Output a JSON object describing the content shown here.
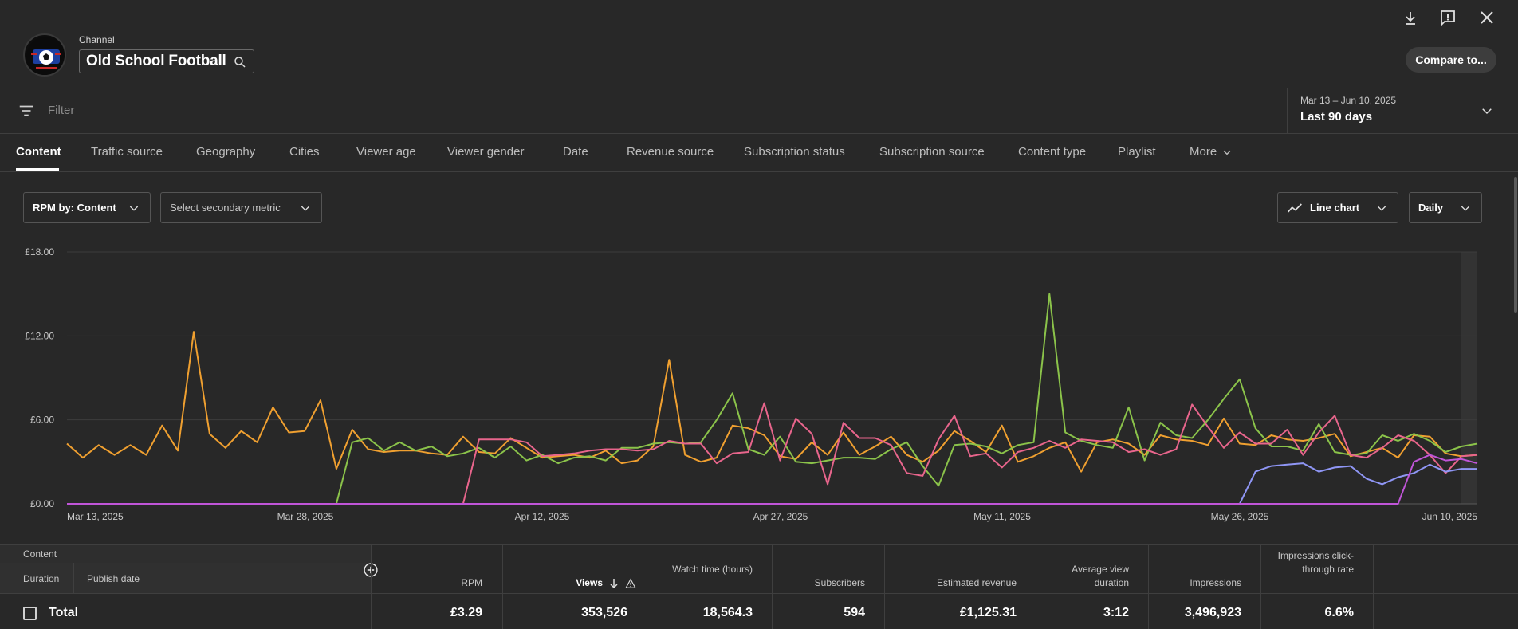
{
  "header": {
    "channel_label": "Channel",
    "channel_name": "Old School Football",
    "compare_label": "Compare to..."
  },
  "filter": {
    "placeholder": "Filter",
    "date_range": "Mar 13 – Jun 10, 2025",
    "date_label": "Last 90 days"
  },
  "tabs": [
    {
      "label": "Content",
      "active": true
    },
    {
      "label": "Traffic source"
    },
    {
      "label": "Geography"
    },
    {
      "label": "Cities"
    },
    {
      "label": "Viewer age"
    },
    {
      "label": "Viewer gender"
    },
    {
      "label": "Date"
    },
    {
      "label": "Revenue source"
    },
    {
      "label": "Subscription status"
    },
    {
      "label": "Subscription source"
    },
    {
      "label": "Content type"
    },
    {
      "label": "Playlist"
    },
    {
      "label": "More"
    }
  ],
  "controls": {
    "metric": "RPM by: Content",
    "secondary": "Select secondary metric",
    "chart_type": "Line chart",
    "granularity": "Daily"
  },
  "chart_data": {
    "type": "line",
    "x_start": "2025-03-13",
    "x_ticks": [
      "Mar 13, 2025",
      "Mar 28, 2025",
      "Apr 12, 2025",
      "Apr 27, 2025",
      "May 11, 2025",
      "May 26, 2025",
      "Jun 10, 2025"
    ],
    "y_ticks": [
      "£0.00",
      "£6.00",
      "£12.00",
      "£18.00"
    ],
    "ylim": [
      0,
      18
    ],
    "grid": true,
    "series": [
      {
        "color": "#f0a030",
        "values": [
          4.3,
          3.3,
          4.2,
          3.5,
          4.2,
          3.5,
          5.6,
          3.8,
          12.3,
          5.0,
          4.0,
          5.2,
          4.4,
          6.9,
          5.1,
          5.2,
          7.4,
          2.5,
          5.3,
          3.9,
          3.7,
          3.8,
          3.8,
          3.6,
          3.5,
          4.8,
          3.7,
          3.6,
          4.7,
          4.0,
          3.3,
          3.4,
          3.5,
          3.3,
          3.8,
          2.9,
          3.1,
          4.1,
          10.3,
          3.5,
          3.0,
          3.3,
          5.6,
          5.4,
          4.9,
          3.4,
          3.2,
          4.4,
          3.5,
          5.1,
          3.5,
          4.1,
          4.8,
          3.5,
          3.0,
          3.8,
          5.2,
          4.5,
          3.7,
          5.6,
          3.0,
          3.4,
          4.0,
          4.4,
          2.3,
          4.4,
          4.6,
          4.3,
          3.5,
          4.9,
          4.6,
          4.5,
          4.2,
          6.1,
          4.3,
          4.2,
          4.9,
          4.6,
          4.5,
          4.7,
          5.0,
          3.4,
          3.7,
          4.0,
          3.3,
          4.9,
          4.8,
          3.6,
          3.4,
          3.5
        ]
      },
      {
        "color": "#8bc34a",
        "values": [
          0,
          0,
          0,
          0,
          0,
          0,
          0,
          0,
          0,
          0,
          0,
          0,
          0,
          0,
          0,
          0,
          0,
          0,
          4.4,
          4.7,
          3.8,
          4.4,
          3.8,
          4.1,
          3.4,
          3.6,
          4.0,
          3.3,
          4.1,
          3.1,
          3.5,
          2.9,
          3.3,
          3.4,
          3.1,
          4.0,
          4.0,
          4.3,
          4.4,
          4.3,
          4.4,
          6.0,
          7.9,
          3.9,
          3.5,
          4.8,
          3.0,
          2.9,
          3.1,
          3.3,
          3.3,
          3.2,
          3.9,
          4.4,
          2.7,
          1.3,
          4.2,
          4.3,
          4.1,
          3.6,
          4.2,
          4.4,
          15.0,
          5.1,
          4.5,
          4.2,
          4.0,
          6.9,
          3.1,
          5.8,
          4.9,
          4.7,
          6.0,
          7.5,
          8.9,
          5.4,
          4.1,
          4.1,
          3.8,
          5.7,
          3.7,
          3.5,
          3.6,
          4.9,
          4.5,
          5.0,
          4.5,
          3.7,
          4.1,
          4.3
        ]
      },
      {
        "color": "#e8658c",
        "values": [
          0,
          0,
          0,
          0,
          0,
          0,
          0,
          0,
          0,
          0,
          0,
          0,
          0,
          0,
          0,
          0,
          0,
          0,
          0,
          0,
          0,
          0,
          0,
          0,
          0,
          0,
          4.6,
          4.6,
          4.6,
          4.4,
          3.4,
          3.5,
          3.6,
          3.8,
          3.9,
          3.9,
          3.8,
          3.9,
          4.5,
          4.3,
          4.3,
          2.9,
          3.6,
          3.7,
          7.2,
          3.1,
          6.1,
          5.0,
          1.4,
          5.8,
          4.7,
          4.7,
          4.2,
          2.2,
          2.0,
          4.6,
          6.3,
          3.4,
          3.6,
          2.6,
          3.7,
          4.0,
          4.5,
          4.0,
          4.6,
          4.5,
          4.4,
          3.7,
          3.9,
          3.5,
          3.9,
          7.1,
          5.5,
          4.0,
          5.1,
          4.3,
          4.3,
          5.3,
          3.5,
          5.1,
          6.3,
          3.5,
          3.3,
          4.0,
          4.9,
          4.5,
          3.5,
          2.2,
          3.4,
          3.5
        ]
      },
      {
        "color": "#8f96f5",
        "values": [
          0,
          0,
          0,
          0,
          0,
          0,
          0,
          0,
          0,
          0,
          0,
          0,
          0,
          0,
          0,
          0,
          0,
          0,
          0,
          0,
          0,
          0,
          0,
          0,
          0,
          0,
          0,
          0,
          0,
          0,
          0,
          0,
          0,
          0,
          0,
          0,
          0,
          0,
          0,
          0,
          0,
          0,
          0,
          0,
          0,
          0,
          0,
          0,
          0,
          0,
          0,
          0,
          0,
          0,
          0,
          0,
          0,
          0,
          0,
          0,
          0,
          0,
          0,
          0,
          0,
          0,
          0,
          0,
          0,
          0,
          0,
          0,
          0,
          0,
          0,
          2.3,
          2.7,
          2.8,
          2.9,
          2.3,
          2.6,
          2.7,
          1.8,
          1.4,
          1.9,
          2.2,
          2.8,
          2.3,
          2.5,
          2.5
        ]
      },
      {
        "color": "#c055d8",
        "values": [
          0,
          0,
          0,
          0,
          0,
          0,
          0,
          0,
          0,
          0,
          0,
          0,
          0,
          0,
          0,
          0,
          0,
          0,
          0,
          0,
          0,
          0,
          0,
          0,
          0,
          0,
          0,
          0,
          0,
          0,
          0,
          0,
          0,
          0,
          0,
          0,
          0,
          0,
          0,
          0,
          0,
          0,
          0,
          0,
          0,
          0,
          0,
          0,
          0,
          0,
          0,
          0,
          0,
          0,
          0,
          0,
          0,
          0,
          0,
          0,
          0,
          0,
          0,
          0,
          0,
          0,
          0,
          0,
          0,
          0,
          0,
          0,
          0,
          0,
          0,
          0,
          0,
          0,
          0,
          0,
          0,
          0,
          0,
          0,
          0,
          3.0,
          3.5,
          3.1,
          3.2,
          2.9
        ]
      }
    ]
  },
  "table": {
    "content_header": "Content",
    "duration_header": "Duration",
    "publish_header": "Publish date",
    "columns": [
      {
        "label": "RPM"
      },
      {
        "label": "Views"
      },
      {
        "label": "Watch time (hours)"
      },
      {
        "label": "Subscribers"
      },
      {
        "label": "Estimated revenue"
      },
      {
        "label": "Average view duration"
      },
      {
        "label": "Impressions"
      },
      {
        "label": "Impressions click-through rate"
      }
    ],
    "total_label": "Total",
    "total": {
      "rpm": "£3.29",
      "views": "353,526",
      "watch_time": "18,564.3",
      "subscribers": "594",
      "revenue": "£1,125.31",
      "avd": "3:12",
      "impressions": "3,496,923",
      "ctr": "6.6%"
    }
  }
}
